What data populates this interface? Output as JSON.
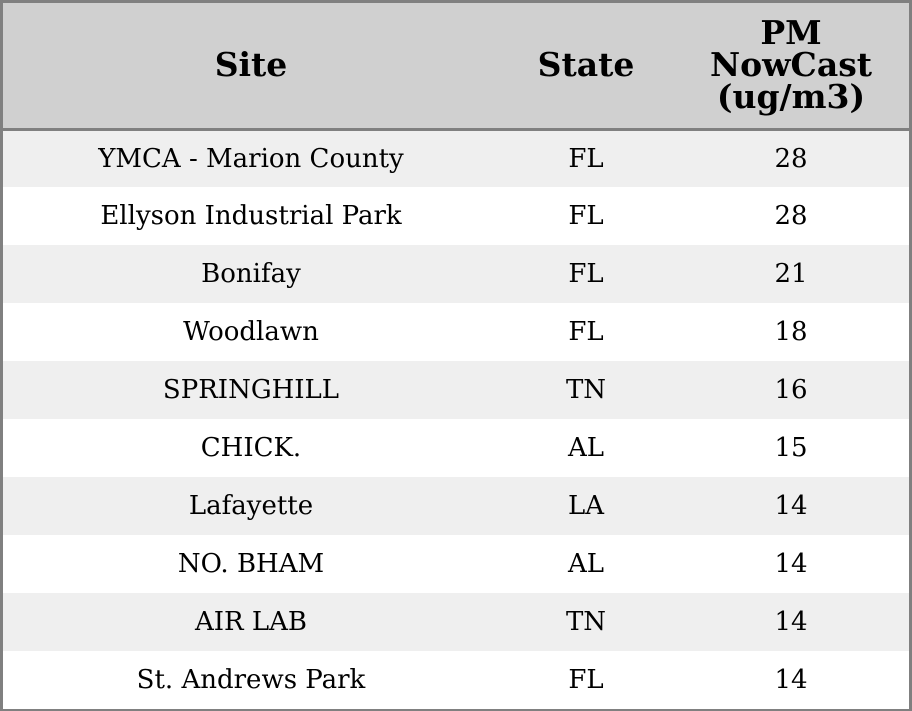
{
  "chart_data": {
    "type": "table",
    "columns": [
      "Site",
      "State",
      "PM NowCast (ug/m3)"
    ],
    "rows": [
      {
        "site": "YMCA - Marion County",
        "state": "FL",
        "pm": "28"
      },
      {
        "site": "Ellyson Industrial Park",
        "state": "FL",
        "pm": "28"
      },
      {
        "site": "Bonifay",
        "state": "FL",
        "pm": "21"
      },
      {
        "site": "Woodlawn",
        "state": "FL",
        "pm": "18"
      },
      {
        "site": "SPRINGHILL",
        "state": "TN",
        "pm": "16"
      },
      {
        "site": "CHICK.",
        "state": "AL",
        "pm": "15"
      },
      {
        "site": "Lafayette",
        "state": "LA",
        "pm": "14"
      },
      {
        "site": "NO. BHAM",
        "state": "AL",
        "pm": "14"
      },
      {
        "site": "AIR LAB",
        "state": "TN",
        "pm": "14"
      },
      {
        "site": "St. Andrews Park",
        "state": "FL",
        "pm": "14"
      }
    ],
    "header_lines": {
      "pm": [
        "PM",
        "NowCast",
        "(ug/m3)"
      ]
    },
    "colors": {
      "header_bg": "#d0d0d0",
      "row_odd": "#efefef",
      "row_even": "#ffffff",
      "border": "#808080"
    }
  }
}
